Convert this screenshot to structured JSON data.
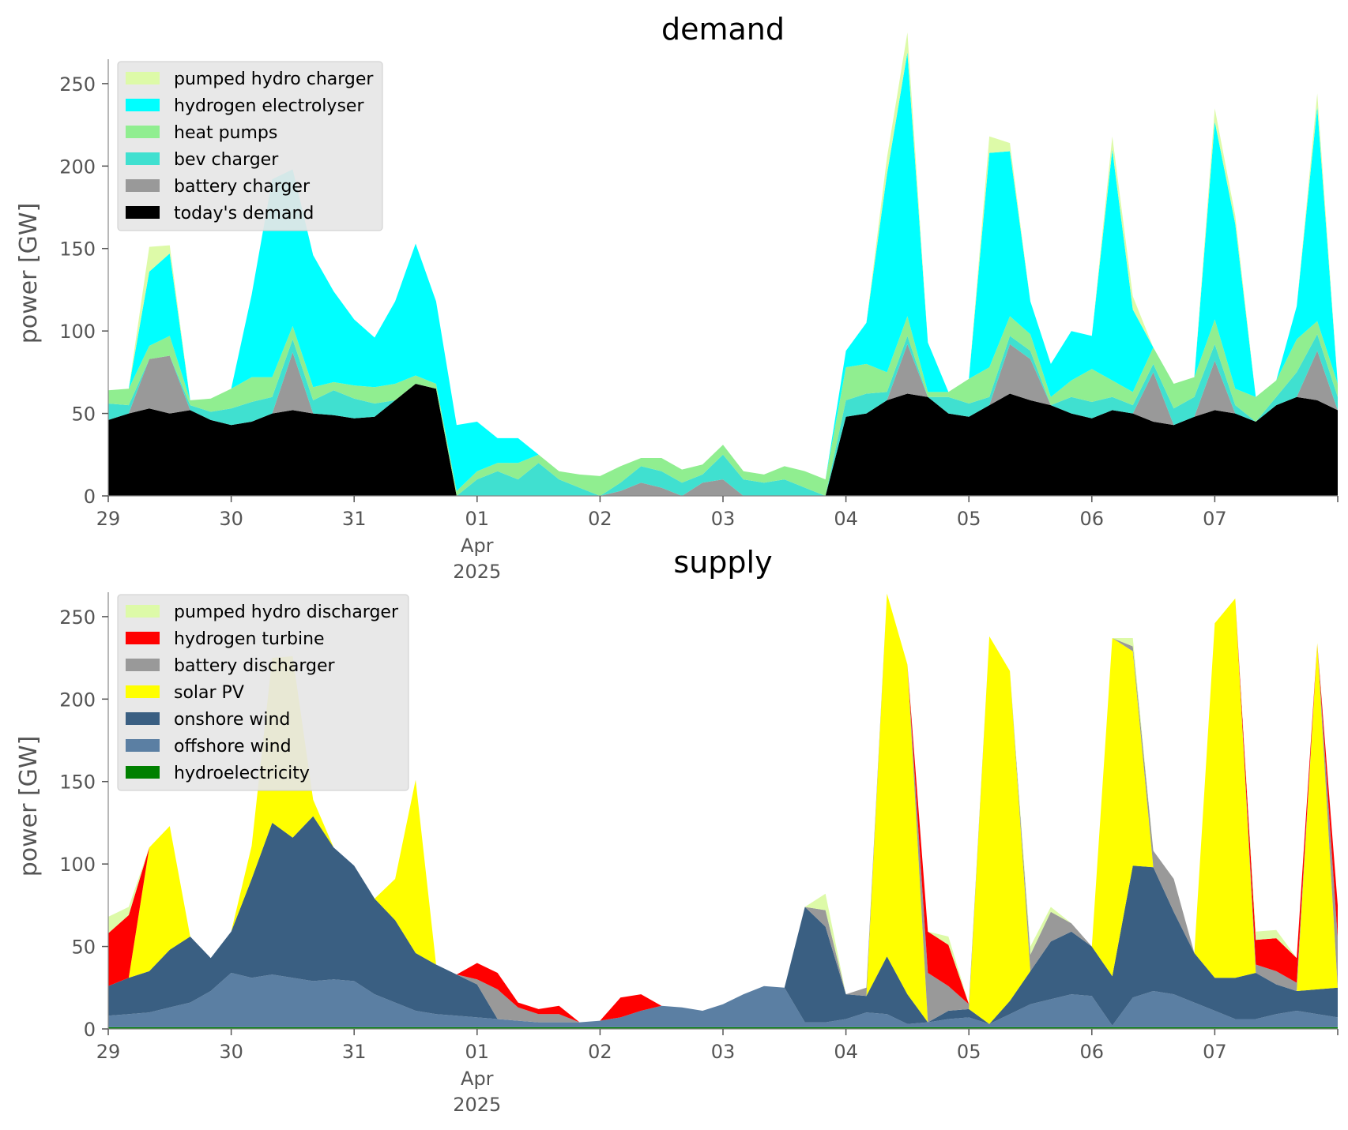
{
  "chart_data": [
    {
      "type": "area",
      "title": "demand",
      "ylabel": "power [GW]",
      "xlabel": "",
      "x_start": "2025-03-29",
      "x_end": "2025-04-08",
      "x_ticks": [
        "29",
        "30",
        "31",
        "01",
        "02",
        "03",
        "04",
        "05",
        "06",
        "07"
      ],
      "x_tick_sublabel": [
        "Apr",
        "2025"
      ],
      "y_ticks": [
        0,
        50,
        100,
        150,
        200,
        250
      ],
      "ylim": [
        0,
        260
      ],
      "legend_position": "upper-left",
      "grid": false,
      "x_hours": [
        0,
        4,
        8,
        12,
        16,
        20,
        24,
        28,
        32,
        36,
        40,
        44,
        48,
        52,
        56,
        60,
        64,
        68,
        72,
        76,
        80,
        84,
        88,
        92,
        96,
        100,
        104,
        108,
        112,
        116,
        120,
        124,
        128,
        132,
        136,
        140,
        144,
        148,
        152,
        156,
        160,
        164,
        168,
        172,
        176,
        180,
        184,
        188,
        192,
        196,
        200,
        204,
        208,
        212,
        216,
        220,
        224,
        228,
        232,
        236,
        240
      ],
      "series": [
        {
          "name": "today's demand",
          "color": "#000000",
          "values": [
            46,
            50,
            53,
            50,
            52,
            46,
            43,
            45,
            50,
            52,
            50,
            49,
            47,
            48,
            58,
            68,
            65,
            0,
            0,
            0,
            0,
            0,
            0,
            0,
            0,
            0,
            0,
            0,
            0,
            0,
            0,
            0,
            0,
            0,
            0,
            0,
            48,
            50,
            58,
            62,
            60,
            50,
            48,
            55,
            62,
            58,
            55,
            50,
            47,
            52,
            50,
            45,
            43,
            48,
            52,
            50,
            45,
            55,
            60,
            58,
            52
          ]
        },
        {
          "name": "battery charger",
          "color": "#999999",
          "values": [
            0,
            0,
            30,
            35,
            0,
            0,
            0,
            0,
            0,
            35,
            0,
            0,
            0,
            0,
            0,
            0,
            0,
            0,
            0,
            0,
            0,
            0,
            0,
            0,
            0,
            3,
            8,
            5,
            0,
            8,
            10,
            0,
            0,
            0,
            0,
            0,
            0,
            0,
            0,
            30,
            0,
            0,
            0,
            0,
            30,
            25,
            0,
            0,
            0,
            0,
            0,
            30,
            0,
            0,
            30,
            0,
            0,
            0,
            0,
            30,
            0
          ]
        },
        {
          "name": "bev charger",
          "color": "#40e0d0",
          "values": [
            10,
            5,
            0,
            0,
            3,
            5,
            10,
            12,
            10,
            8,
            8,
            15,
            12,
            8,
            0,
            0,
            0,
            0,
            10,
            15,
            10,
            20,
            10,
            5,
            0,
            5,
            10,
            10,
            8,
            5,
            15,
            10,
            8,
            10,
            5,
            0,
            10,
            12,
            5,
            5,
            0,
            10,
            8,
            5,
            5,
            5,
            0,
            10,
            10,
            8,
            5,
            5,
            10,
            12,
            10,
            5,
            0,
            5,
            15,
            10,
            8
          ]
        },
        {
          "name": "heat pumps",
          "color": "#90ee90",
          "values": [
            8,
            10,
            8,
            12,
            3,
            8,
            12,
            15,
            12,
            8,
            8,
            5,
            8,
            10,
            10,
            5,
            3,
            3,
            5,
            5,
            10,
            5,
            5,
            8,
            12,
            10,
            5,
            8,
            8,
            6,
            6,
            5,
            5,
            8,
            10,
            10,
            20,
            18,
            12,
            12,
            3,
            3,
            15,
            18,
            12,
            10,
            5,
            10,
            20,
            10,
            8,
            10,
            15,
            12,
            15,
            10,
            15,
            10,
            20,
            8,
            8
          ]
        },
        {
          "name": "hydrogen electrolyser",
          "color": "#00ffff",
          "values": [
            0,
            0,
            45,
            50,
            0,
            0,
            0,
            50,
            120,
            95,
            80,
            55,
            40,
            30,
            50,
            80,
            50,
            40,
            30,
            15,
            15,
            0,
            0,
            0,
            0,
            0,
            0,
            0,
            0,
            0,
            0,
            0,
            0,
            0,
            0,
            0,
            10,
            25,
            120,
            160,
            30,
            0,
            0,
            130,
            100,
            20,
            20,
            30,
            20,
            140,
            50,
            0,
            0,
            0,
            120,
            100,
            0,
            0,
            20,
            130,
            0
          ]
        },
        {
          "name": "pumped hydro charger",
          "color": "#ddfaa8",
          "values": [
            0,
            0,
            15,
            5,
            0,
            0,
            0,
            0,
            0,
            0,
            0,
            0,
            0,
            0,
            0,
            0,
            0,
            0,
            0,
            0,
            0,
            0,
            0,
            0,
            0,
            0,
            0,
            0,
            0,
            0,
            0,
            0,
            0,
            0,
            0,
            0,
            0,
            0,
            10,
            12,
            0,
            0,
            0,
            10,
            5,
            0,
            0,
            0,
            0,
            8,
            8,
            0,
            0,
            0,
            8,
            5,
            0,
            0,
            0,
            8,
            0
          ]
        }
      ]
    },
    {
      "type": "area",
      "title": "supply",
      "ylabel": "power [GW]",
      "xlabel": "",
      "x_start": "2025-03-29",
      "x_end": "2025-04-08",
      "x_ticks": [
        "29",
        "30",
        "31",
        "01",
        "02",
        "03",
        "04",
        "05",
        "06",
        "07"
      ],
      "x_tick_sublabel": [
        "Apr",
        "2025"
      ],
      "y_ticks": [
        0,
        50,
        100,
        150,
        200,
        250
      ],
      "ylim": [
        0,
        260
      ],
      "legend_position": "upper-left",
      "grid": false,
      "x_hours": [
        0,
        4,
        8,
        12,
        16,
        20,
        24,
        28,
        32,
        36,
        40,
        44,
        48,
        52,
        56,
        60,
        64,
        68,
        72,
        76,
        80,
        84,
        88,
        92,
        96,
        100,
        104,
        108,
        112,
        116,
        120,
        124,
        128,
        132,
        136,
        140,
        144,
        148,
        152,
        156,
        160,
        164,
        168,
        172,
        176,
        180,
        184,
        188,
        192,
        196,
        200,
        204,
        208,
        212,
        216,
        220,
        224,
        228,
        232,
        236,
        240
      ],
      "series": [
        {
          "name": "hydroelectricity",
          "color": "#008000",
          "values": [
            1,
            1,
            1,
            1,
            1,
            1,
            1,
            1,
            1,
            1,
            1,
            1,
            1,
            1,
            1,
            1,
            1,
            1,
            1,
            1,
            1,
            1,
            1,
            1,
            1,
            1,
            1,
            1,
            1,
            1,
            1,
            1,
            1,
            1,
            1,
            1,
            1,
            1,
            1,
            1,
            1,
            1,
            1,
            1,
            1,
            1,
            1,
            1,
            1,
            1,
            1,
            1,
            1,
            1,
            1,
            1,
            1,
            1,
            1,
            1,
            1
          ]
        },
        {
          "name": "offshore wind",
          "color": "#5b7fa3",
          "values": [
            7,
            8,
            9,
            12,
            15,
            22,
            33,
            30,
            32,
            30,
            28,
            29,
            28,
            20,
            15,
            10,
            8,
            7,
            6,
            5,
            4,
            3,
            3,
            3,
            4,
            6,
            10,
            13,
            12,
            10,
            14,
            20,
            25,
            24,
            3,
            3,
            5,
            9,
            8,
            2,
            3,
            5,
            6,
            2,
            8,
            14,
            17,
            20,
            19,
            1,
            18,
            22,
            20,
            15,
            10,
            5,
            5,
            8,
            10,
            8,
            6
          ]
        },
        {
          "name": "onshore wind",
          "color": "#3a5f82",
          "values": [
            18,
            22,
            25,
            35,
            40,
            20,
            25,
            60,
            92,
            85,
            100,
            80,
            70,
            58,
            50,
            35,
            30,
            25,
            20,
            0,
            0,
            0,
            0,
            0,
            0,
            0,
            0,
            0,
            0,
            0,
            0,
            0,
            0,
            0,
            70,
            58,
            15,
            10,
            35,
            18,
            0,
            5,
            5,
            0,
            8,
            20,
            35,
            38,
            30,
            30,
            80,
            75,
            50,
            30,
            20,
            25,
            28,
            18,
            12,
            15,
            18
          ]
        },
        {
          "name": "solar PV",
          "color": "#ffff00",
          "values": [
            0,
            0,
            75,
            75,
            0,
            0,
            0,
            20,
            100,
            110,
            10,
            0,
            0,
            0,
            25,
            105,
            0,
            0,
            0,
            0,
            0,
            0,
            0,
            0,
            0,
            0,
            0,
            0,
            0,
            0,
            0,
            0,
            0,
            0,
            0,
            0,
            0,
            0,
            220,
            200,
            0,
            0,
            0,
            235,
            200,
            0,
            0,
            0,
            0,
            205,
            130,
            0,
            0,
            0,
            215,
            230,
            0,
            0,
            0,
            210,
            0
          ]
        },
        {
          "name": "battery discharger",
          "color": "#999999",
          "values": [
            0,
            0,
            0,
            0,
            0,
            0,
            0,
            0,
            0,
            0,
            0,
            0,
            0,
            0,
            0,
            0,
            0,
            0,
            3,
            18,
            8,
            5,
            5,
            0,
            0,
            0,
            0,
            0,
            0,
            0,
            0,
            0,
            0,
            0,
            0,
            10,
            0,
            5,
            0,
            0,
            30,
            15,
            3,
            0,
            0,
            10,
            18,
            5,
            0,
            0,
            3,
            10,
            20,
            0,
            0,
            0,
            5,
            8,
            5,
            0,
            30
          ]
        },
        {
          "name": "hydrogen turbine",
          "color": "#ff0000",
          "values": [
            32,
            38,
            0,
            0,
            0,
            0,
            0,
            0,
            0,
            0,
            0,
            0,
            0,
            0,
            0,
            0,
            0,
            0,
            10,
            10,
            3,
            3,
            5,
            0,
            0,
            12,
            10,
            0,
            0,
            0,
            0,
            0,
            0,
            0,
            0,
            0,
            0,
            0,
            0,
            0,
            25,
            25,
            0,
            0,
            0,
            0,
            0,
            0,
            0,
            0,
            0,
            0,
            0,
            0,
            0,
            0,
            15,
            20,
            15,
            0,
            20
          ]
        },
        {
          "name": "pumped hydro discharger",
          "color": "#ddfaa8",
          "values": [
            10,
            5,
            0,
            0,
            0,
            0,
            0,
            0,
            0,
            0,
            0,
            0,
            0,
            0,
            0,
            0,
            0,
            0,
            0,
            0,
            0,
            0,
            0,
            0,
            0,
            0,
            0,
            0,
            0,
            0,
            0,
            0,
            0,
            0,
            0,
            10,
            0,
            0,
            0,
            0,
            0,
            5,
            0,
            0,
            0,
            5,
            3,
            0,
            0,
            0,
            5,
            0,
            0,
            0,
            0,
            0,
            5,
            5,
            0,
            0,
            0
          ]
        }
      ]
    }
  ]
}
